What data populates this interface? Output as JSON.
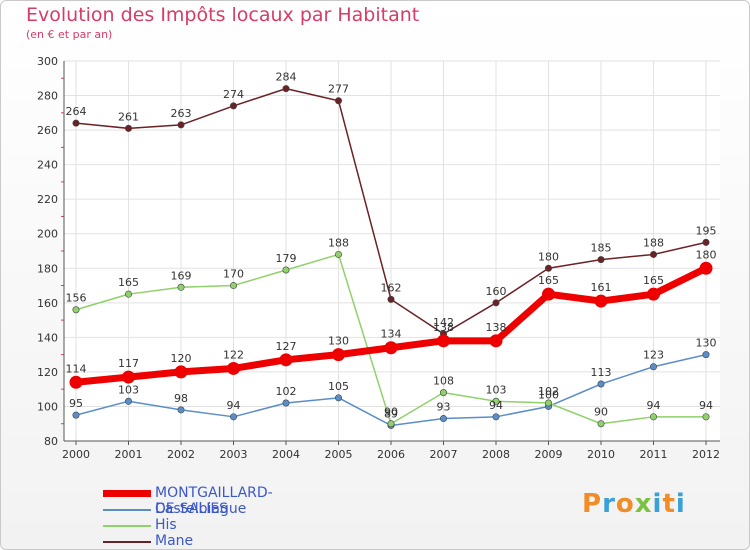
{
  "header": {
    "title": "Evolution des Impôts locaux par Habitant",
    "subtitle": "(en € et par an)"
  },
  "logo": {
    "letters": [
      "P",
      "r",
      "o",
      "x",
      "i",
      "t",
      "i"
    ],
    "colors": [
      "#f28c28",
      "#3aa0d8",
      "#f28c28",
      "#7cc144",
      "#3aa0d8",
      "#f28c28",
      "#3aa0d8"
    ]
  },
  "chart_data": {
    "type": "line",
    "title": "Evolution des Impôts locaux par Habitant",
    "subtitle": "(en € et par an)",
    "xlabel": "",
    "ylabel": "",
    "x": [
      "2000",
      "2001",
      "2002",
      "2003",
      "2004",
      "2005",
      "2006",
      "2007",
      "2008",
      "2009",
      "2010",
      "2011",
      "2012"
    ],
    "ylim": [
      80,
      300
    ],
    "yticks": [
      80,
      100,
      120,
      140,
      160,
      180,
      200,
      220,
      240,
      260,
      280,
      300
    ],
    "grid": true,
    "legend_position": "bottom-left",
    "series": [
      {
        "name": "MONTGAILLARD-DE-SALIES",
        "color": "#ee0000",
        "emphasis": true,
        "values": [
          114,
          117,
          120,
          122,
          127,
          130,
          134,
          138,
          138,
          165,
          161,
          165,
          180
        ]
      },
      {
        "name": "Castelbiague",
        "color": "#5b8ec9",
        "emphasis": false,
        "values": [
          95,
          103,
          98,
          94,
          102,
          105,
          89,
          93,
          94,
          100,
          113,
          123,
          130
        ]
      },
      {
        "name": "His",
        "color": "#8fd16a",
        "emphasis": false,
        "values": [
          156,
          165,
          169,
          170,
          179,
          188,
          90,
          108,
          103,
          102,
          90,
          94,
          94
        ]
      },
      {
        "name": "Mane",
        "color": "#6b2226",
        "emphasis": false,
        "values": [
          264,
          261,
          263,
          274,
          284,
          277,
          162,
          142,
          160,
          180,
          185,
          188,
          195
        ]
      }
    ]
  }
}
